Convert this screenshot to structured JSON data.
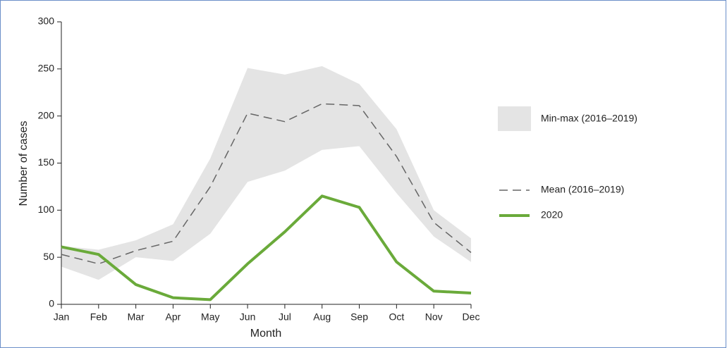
{
  "chart_data": {
    "type": "line",
    "x_label": "Month",
    "y_label": "Number of cases",
    "categories": [
      "Jan",
      "Feb",
      "Mar",
      "Apr",
      "May",
      "Jun",
      "Jul",
      "Aug",
      "Sep",
      "Oct",
      "Nov",
      "Dec"
    ],
    "ylim": [
      0,
      300
    ],
    "yticks": [
      0,
      50,
      100,
      150,
      200,
      250,
      300
    ],
    "series": [
      {
        "name": "Min-max (2016–2019)",
        "color": "#e4e4e4",
        "style": "band",
        "max": [
          62,
          58,
          68,
          85,
          155,
          251,
          244,
          253,
          234,
          186,
          100,
          70
        ],
        "min": [
          40,
          26,
          50,
          46,
          75,
          130,
          142,
          164,
          168,
          118,
          72,
          45
        ]
      },
      {
        "name": "Mean (2016–2019)",
        "color": "#666666",
        "style": "dashed",
        "values": [
          53,
          43,
          57,
          67,
          125,
          203,
          194,
          213,
          211,
          157,
          87,
          55
        ]
      },
      {
        "name": "2020",
        "color": "#6aaa3a",
        "style": "solid",
        "values": [
          61,
          53,
          21,
          7,
          5,
          43,
          77,
          115,
          103,
          45,
          14,
          12
        ]
      }
    ]
  }
}
